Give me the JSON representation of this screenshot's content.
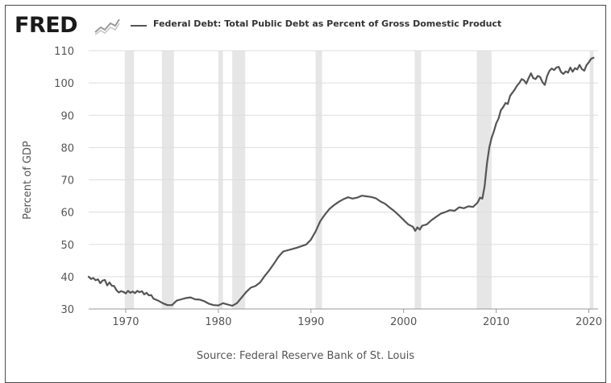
{
  "header": {
    "logo_text": "FRED",
    "logo_icon": "fred-chart-icon",
    "series_title": "Federal Debt: Total Public Debt as Percent of Gross Domestic Product"
  },
  "footer": {
    "source": "Source: Federal Reserve Bank of St. Louis"
  },
  "colors": {
    "line": "#555555",
    "recession": "#e6e6e6",
    "grid": "#dddddd",
    "text": "#555555"
  },
  "chart_data": {
    "type": "line",
    "title": "Federal Debt: Total Public Debt as Percent of Gross Domestic Product",
    "xlabel": "",
    "ylabel": "Percent of GDP",
    "xlim": [
      1966,
      2021
    ],
    "ylim": [
      30,
      110
    ],
    "x_ticks": [
      1970,
      1980,
      1990,
      2000,
      2010,
      2020
    ],
    "y_ticks": [
      30,
      40,
      50,
      60,
      70,
      80,
      90,
      100,
      110
    ],
    "grid": true,
    "legend_placement": "top",
    "recessions": [
      [
        1969.9,
        1970.9
      ],
      [
        1973.9,
        1975.2
      ],
      [
        1980.0,
        1980.5
      ],
      [
        1981.5,
        1982.9
      ],
      [
        1990.5,
        1991.2
      ],
      [
        2001.2,
        2001.9
      ],
      [
        2007.9,
        2009.5
      ],
      [
        2020.1,
        2020.5
      ]
    ],
    "series": [
      {
        "values": [
          [
            1966.0,
            40
          ],
          [
            1966.25,
            39.3
          ],
          [
            1966.5,
            39.6
          ],
          [
            1966.75,
            38.9
          ],
          [
            1967.0,
            39.2
          ],
          [
            1967.25,
            38.0
          ],
          [
            1967.5,
            38.8
          ],
          [
            1967.75,
            39.0
          ],
          [
            1968.0,
            37.3
          ],
          [
            1968.25,
            38.2
          ],
          [
            1968.5,
            37.2
          ],
          [
            1968.75,
            37.1
          ],
          [
            1969.0,
            35.8
          ],
          [
            1969.25,
            35.1
          ],
          [
            1969.5,
            35.5
          ],
          [
            1969.75,
            35.3
          ],
          [
            1970.0,
            34.8
          ],
          [
            1970.25,
            35.6
          ],
          [
            1970.5,
            35.0
          ],
          [
            1970.75,
            35.4
          ],
          [
            1971.0,
            34.9
          ],
          [
            1971.25,
            35.6
          ],
          [
            1971.5,
            35.2
          ],
          [
            1971.75,
            35.5
          ],
          [
            1972.0,
            34.5
          ],
          [
            1972.25,
            35.0
          ],
          [
            1972.5,
            34.2
          ],
          [
            1972.75,
            34.3
          ],
          [
            1973.0,
            33.2
          ],
          [
            1973.5,
            32.6
          ],
          [
            1974.0,
            31.8
          ],
          [
            1974.5,
            31.2
          ],
          [
            1975.0,
            31.2
          ],
          [
            1975.5,
            32.6
          ],
          [
            1976.0,
            33.0
          ],
          [
            1976.5,
            33.4
          ],
          [
            1977.0,
            33.6
          ],
          [
            1977.5,
            33.0
          ],
          [
            1978.0,
            32.9
          ],
          [
            1978.5,
            32.4
          ],
          [
            1979.0,
            31.6
          ],
          [
            1979.5,
            31.2
          ],
          [
            1980.0,
            31.1
          ],
          [
            1980.5,
            31.8
          ],
          [
            1981.0,
            31.4
          ],
          [
            1981.5,
            31.0
          ],
          [
            1982.0,
            31.8
          ],
          [
            1982.5,
            33.5
          ],
          [
            1983.0,
            35.2
          ],
          [
            1983.5,
            36.6
          ],
          [
            1984.0,
            37.1
          ],
          [
            1984.5,
            38.2
          ],
          [
            1985.0,
            40.2
          ],
          [
            1985.5,
            42.0
          ],
          [
            1986.0,
            44.0
          ],
          [
            1986.5,
            46.2
          ],
          [
            1987.0,
            47.8
          ],
          [
            1987.5,
            48.2
          ],
          [
            1988.0,
            48.6
          ],
          [
            1988.5,
            49.0
          ],
          [
            1989.0,
            49.5
          ],
          [
            1989.5,
            50.0
          ],
          [
            1990.0,
            51.5
          ],
          [
            1990.5,
            54.0
          ],
          [
            1991.0,
            57.2
          ],
          [
            1991.5,
            59.2
          ],
          [
            1992.0,
            61.0
          ],
          [
            1992.5,
            62.2
          ],
          [
            1993.0,
            63.2
          ],
          [
            1993.5,
            64.0
          ],
          [
            1994.0,
            64.6
          ],
          [
            1994.5,
            64.2
          ],
          [
            1995.0,
            64.5
          ],
          [
            1995.5,
            65.1
          ],
          [
            1996.0,
            64.9
          ],
          [
            1996.5,
            64.7
          ],
          [
            1997.0,
            64.3
          ],
          [
            1997.5,
            63.3
          ],
          [
            1998.0,
            62.6
          ],
          [
            1998.5,
            61.4
          ],
          [
            1999.0,
            60.3
          ],
          [
            1999.5,
            59.0
          ],
          [
            2000.0,
            57.6
          ],
          [
            2000.5,
            56.2
          ],
          [
            2001.0,
            55.5
          ],
          [
            2001.25,
            54.2
          ],
          [
            2001.5,
            55.3
          ],
          [
            2001.75,
            54.6
          ],
          [
            2002.0,
            55.8
          ],
          [
            2002.5,
            56.2
          ],
          [
            2003.0,
            57.5
          ],
          [
            2003.5,
            58.5
          ],
          [
            2004.0,
            59.5
          ],
          [
            2004.5,
            60.0
          ],
          [
            2005.0,
            60.6
          ],
          [
            2005.5,
            60.4
          ],
          [
            2006.0,
            61.5
          ],
          [
            2006.5,
            61.2
          ],
          [
            2007.0,
            61.8
          ],
          [
            2007.5,
            61.6
          ],
          [
            2008.0,
            63.0
          ],
          [
            2008.25,
            64.5
          ],
          [
            2008.5,
            64.2
          ],
          [
            2008.75,
            68.0
          ],
          [
            2009.0,
            75.0
          ],
          [
            2009.25,
            80.0
          ],
          [
            2009.5,
            83.0
          ],
          [
            2009.75,
            85.0
          ],
          [
            2010.0,
            87.5
          ],
          [
            2010.25,
            89.0
          ],
          [
            2010.5,
            91.5
          ],
          [
            2010.75,
            92.5
          ],
          [
            2011.0,
            93.8
          ],
          [
            2011.25,
            93.5
          ],
          [
            2011.5,
            96.0
          ],
          [
            2011.75,
            97.0
          ],
          [
            2012.0,
            98.0
          ],
          [
            2012.25,
            99.2
          ],
          [
            2012.5,
            100.0
          ],
          [
            2012.75,
            101.2
          ],
          [
            2013.0,
            100.8
          ],
          [
            2013.25,
            99.8
          ],
          [
            2013.5,
            101.5
          ],
          [
            2013.75,
            103.0
          ],
          [
            2014.0,
            101.5
          ],
          [
            2014.25,
            101.2
          ],
          [
            2014.5,
            102.2
          ],
          [
            2014.75,
            101.8
          ],
          [
            2015.0,
            100.2
          ],
          [
            2015.25,
            99.4
          ],
          [
            2015.5,
            102.2
          ],
          [
            2015.75,
            103.8
          ],
          [
            2016.0,
            104.5
          ],
          [
            2016.25,
            104.0
          ],
          [
            2016.5,
            104.8
          ],
          [
            2016.75,
            105.0
          ],
          [
            2017.0,
            103.4
          ],
          [
            2017.25,
            102.8
          ],
          [
            2017.5,
            103.6
          ],
          [
            2017.75,
            103.2
          ],
          [
            2018.0,
            104.8
          ],
          [
            2018.25,
            103.5
          ],
          [
            2018.5,
            104.6
          ],
          [
            2018.75,
            104.2
          ],
          [
            2019.0,
            105.6
          ],
          [
            2019.25,
            104.3
          ],
          [
            2019.5,
            103.8
          ],
          [
            2019.75,
            105.5
          ],
          [
            2020.0,
            106.4
          ],
          [
            2020.25,
            107.5
          ],
          [
            2020.5,
            107.8
          ]
        ]
      }
    ]
  }
}
